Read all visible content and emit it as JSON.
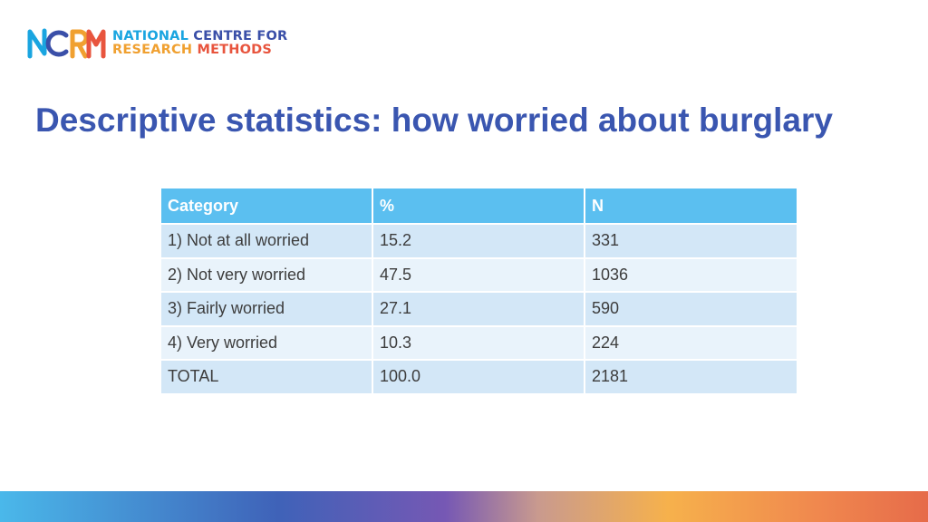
{
  "logo": {
    "mark_letters": "NCRM",
    "line1_word1": "NATIONAL",
    "line1_word2": "CENTRE FOR",
    "line2_word1": "RESEARCH",
    "line2_word2": "METHODS",
    "colors": {
      "blue": "#1aa5e0",
      "navy": "#3a4fa8",
      "orange": "#f0a030",
      "red": "#e8553e"
    }
  },
  "title": "Descriptive statistics: how worried about burglary",
  "table": {
    "headers": [
      "Category",
      "%",
      "N"
    ],
    "rows": [
      [
        "1) Not at all worried",
        "15.2",
        "331"
      ],
      [
        "2) Not very worried",
        "47.5",
        "1036"
      ],
      [
        "3) Fairly worried",
        "27.1",
        "590"
      ],
      [
        "4) Very worried",
        "10.3",
        "224"
      ],
      [
        "TOTAL",
        "100.0",
        "2181"
      ]
    ],
    "colors": {
      "header_bg": "#5bbff0",
      "row_odd": "#d3e7f7",
      "row_even": "#e9f3fb"
    }
  },
  "theme": {
    "title_color": "#3a56b0",
    "gradient": [
      "#4ab8ea",
      "#3f62b8",
      "#7658b4",
      "#f6b14c",
      "#e66b4a"
    ]
  }
}
